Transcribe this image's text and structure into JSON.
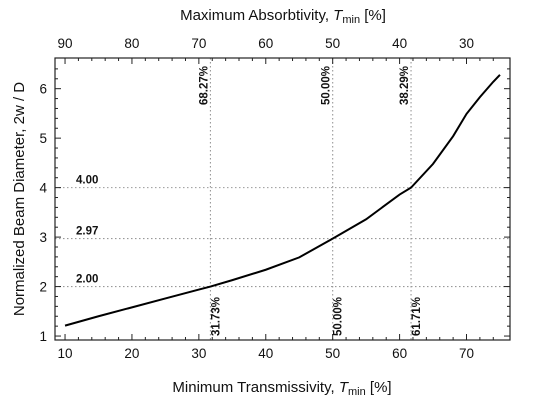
{
  "chart_data": {
    "type": "line",
    "title": "",
    "xlabel": {
      "prefix": "Minimum Transmissivity, ",
      "var": "T",
      "sub": "min",
      "suffix": "  [%]"
    },
    "top_xlabel": {
      "prefix": "Maximum Absorbtivity, ",
      "var": "T",
      "sub": "min",
      "suffix": "  [%]"
    },
    "ylabel": "Normalized Beam Diameter,  2w / D",
    "xlim": [
      8.5,
      76.5
    ],
    "ylim": [
      0.92,
      6.62
    ],
    "x_ticks": [
      10,
      20,
      30,
      40,
      50,
      60,
      70
    ],
    "y_ticks": [
      1,
      2,
      3,
      4,
      5,
      6
    ],
    "top_ticks": [
      90,
      80,
      70,
      60,
      50,
      40,
      30
    ],
    "grid": false,
    "series": [
      {
        "x": [
          10,
          15,
          20,
          25,
          30,
          31.73,
          35,
          40,
          45,
          50,
          55,
          60,
          61.71,
          65,
          68,
          70,
          72,
          74,
          75
        ],
        "y": [
          1.21,
          1.4,
          1.58,
          1.76,
          1.94,
          2.0,
          2.13,
          2.34,
          2.59,
          2.97,
          3.36,
          3.86,
          4.0,
          4.48,
          5.04,
          5.49,
          5.83,
          6.14,
          6.28
        ]
      }
    ],
    "reference_lines": [
      {
        "x": 31.73,
        "y": 2.0,
        "x_label": "31.73%",
        "y_label": "2.00",
        "top_label": "68.27%"
      },
      {
        "x": 50.0,
        "y": 2.97,
        "x_label": "50.00%",
        "y_label": "2.97",
        "top_label": "50.00%"
      },
      {
        "x": 61.71,
        "y": 4.0,
        "x_label": "61.71%",
        "y_label": "4.00",
        "top_label": "38.29%"
      }
    ]
  }
}
